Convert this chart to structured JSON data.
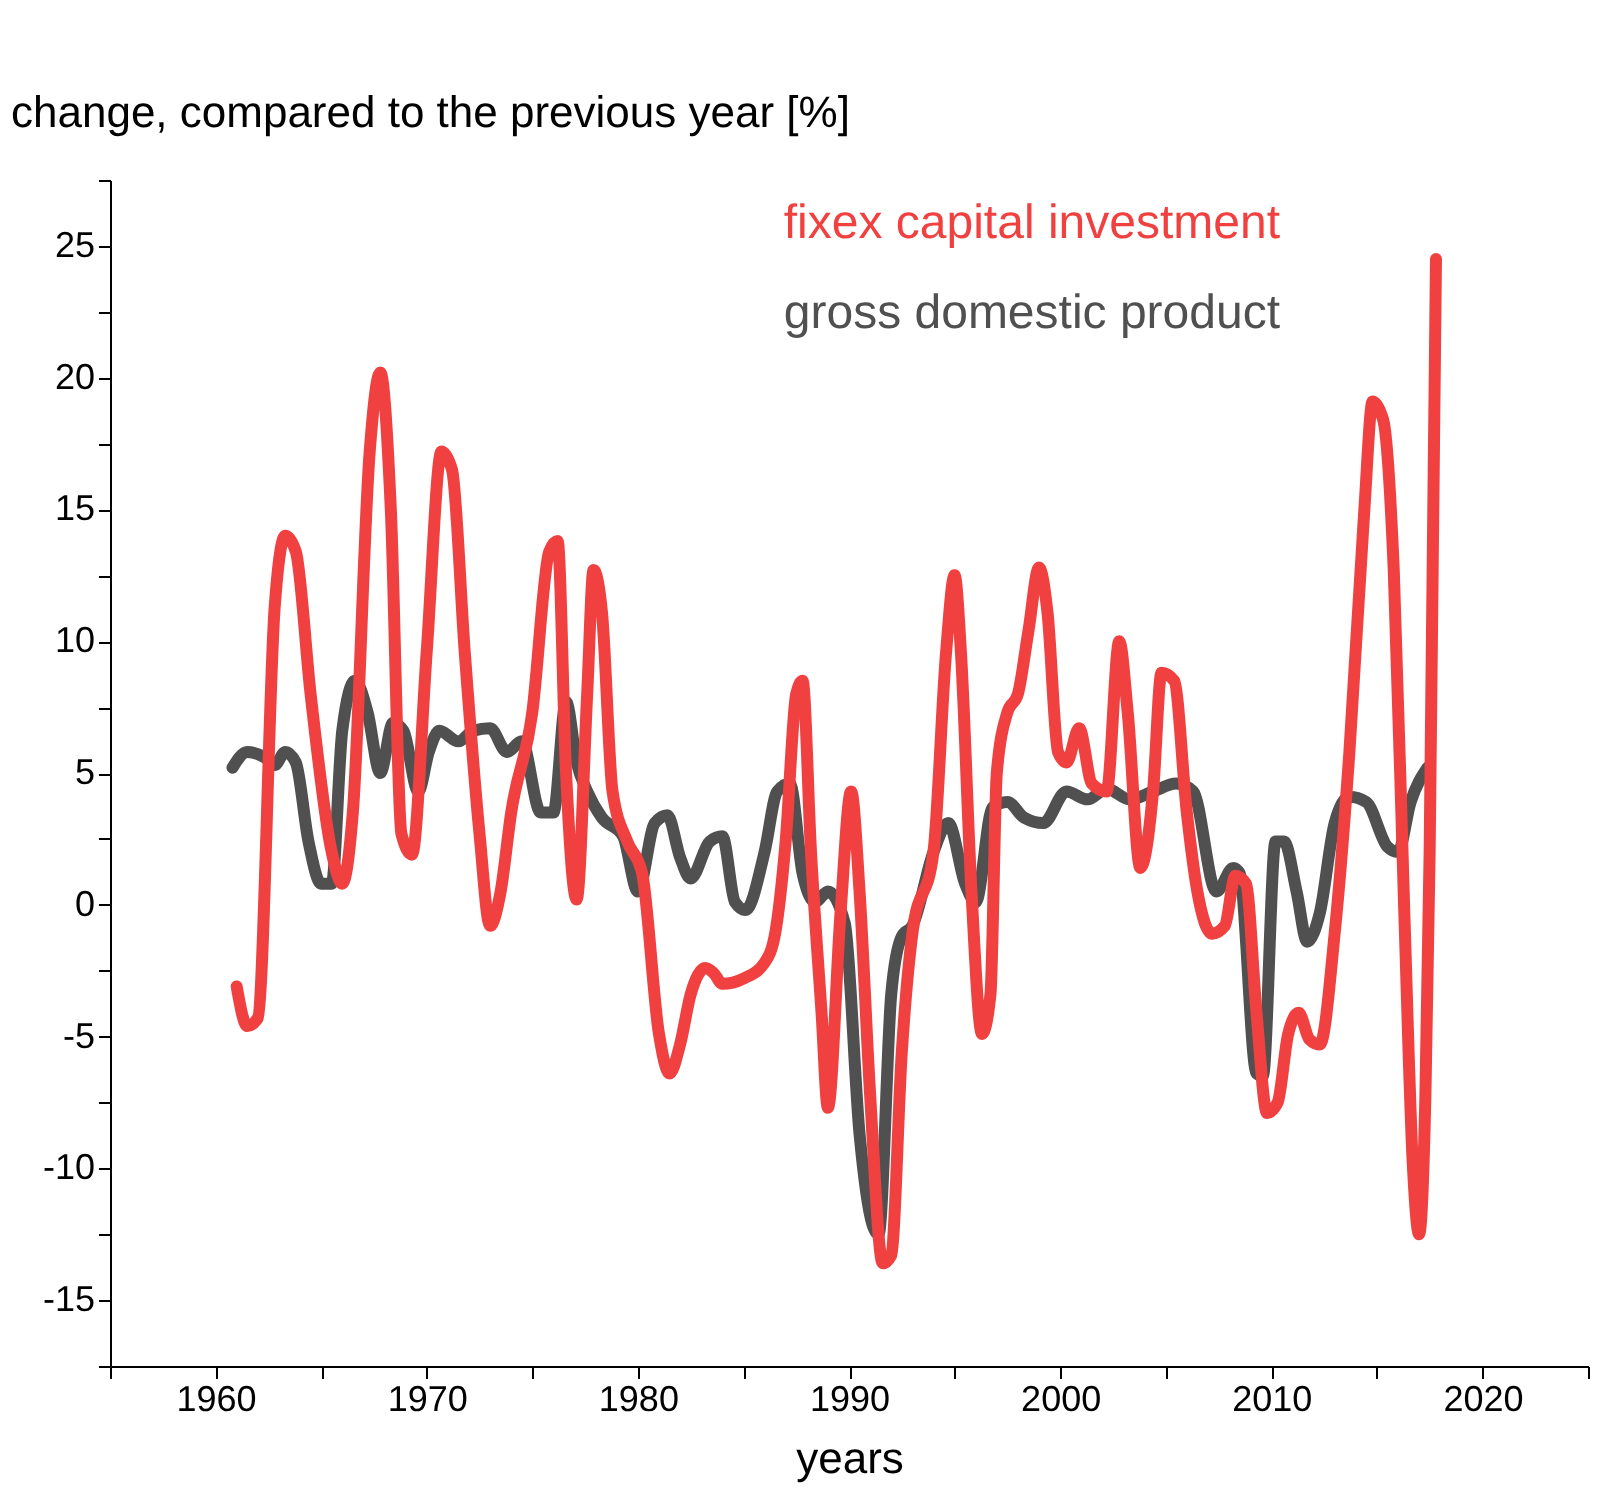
{
  "chart_data": {
    "type": "line",
    "ylabel": "change, compared to the previous year [%]",
    "xlabel": "years",
    "xlim": [
      1955,
      2025
    ],
    "ylim": [
      -17.5,
      27.5
    ],
    "xticks": [
      {
        "value": 1955,
        "label": null
      },
      1960,
      {
        "value": 1965,
        "label": null
      },
      1970,
      {
        "value": 1975,
        "label": null
      },
      1980,
      {
        "value": 1985,
        "label": null
      },
      1990,
      {
        "value": 1995,
        "label": null
      },
      2000,
      {
        "value": 2005,
        "label": null
      },
      2010,
      {
        "value": 2015,
        "label": null
      },
      2020,
      {
        "value": 2025,
        "label": null
      }
    ],
    "yticks": [
      {
        "value": -17.5,
        "label": null
      },
      -15,
      {
        "value": -12.5,
        "label": null
      },
      -10,
      {
        "value": -7.5,
        "label": null
      },
      -5,
      {
        "value": -2.5,
        "label": null
      },
      0,
      {
        "value": 2.5,
        "label": null
      },
      5,
      {
        "value": 7.5,
        "label": null
      },
      10,
      {
        "value": 12.5,
        "label": null
      },
      15,
      {
        "value": 17.5,
        "label": null
      },
      20,
      {
        "value": 22.5,
        "label": null
      },
      25,
      {
        "value": 27.5,
        "label": null
      }
    ],
    "grid": false,
    "legend": "top right",
    "marker": "none",
    "line_style": "solid",
    "series": [
      {
        "name": "gross domestic product",
        "color": "#505050",
        "x": [
          1960.8,
          1961.5,
          1962.3,
          1962.8,
          1963.3,
          1963.8,
          1964.4,
          1965,
          1965.5,
          1966,
          1966.6,
          1967.2,
          1967.8,
          1968.4,
          1968.9,
          1969.6,
          1970.1,
          1970.6,
          1971.5,
          1972.2,
          1973,
          1973.8,
          1974.5,
          1975.4,
          1976,
          1976.6,
          1977.1,
          1977.6,
          1978.3,
          1979.3,
          1980,
          1980.8,
          1981.4,
          1982,
          1982.5,
          1983.4,
          1984,
          1984.6,
          1985.1,
          1986,
          1986.6,
          1987.2,
          1987.8,
          1988.4,
          1989,
          1989.8,
          1990.5,
          1991.1,
          1991.4,
          1992,
          1992.5,
          1993,
          1994,
          1994.7,
          1995.5,
          1996,
          1996.8,
          1997.5,
          1998.3,
          1999.2,
          2000.3,
          2001.3,
          2002.2,
          2003.3,
          2004.4,
          2005.5,
          2006.3,
          2007.4,
          2008.2,
          2008.5,
          2009.3,
          2009.6,
          2010.2,
          2010.6,
          2011.2,
          2011.7,
          2012.3,
          2013,
          2013.7,
          2014.5,
          2015.5,
          2016,
          2016.6,
          2017.4
        ],
        "values": [
          5.2,
          5.8,
          5.6,
          5.3,
          5.8,
          5.4,
          2.4,
          0.8,
          0.8,
          6.6,
          8.5,
          7.3,
          5,
          6.9,
          6.6,
          4.3,
          5.8,
          6.6,
          6.2,
          6.6,
          6.7,
          5.8,
          6.2,
          3.5,
          3.5,
          7.7,
          5.4,
          4.3,
          3.3,
          2.6,
          0.5,
          3.1,
          3.4,
          1.8,
          1,
          2.4,
          2.6,
          0.1,
          -0.2,
          2,
          4.3,
          4.6,
          1.2,
          0.1,
          0.5,
          -0.7,
          -8.7,
          -12.1,
          -12.5,
          -3.4,
          -1.2,
          -0.8,
          2,
          3.1,
          0.8,
          0.1,
          3.7,
          3.9,
          3.3,
          3.1,
          4.3,
          4,
          4.4,
          4,
          4.3,
          4.6,
          4.3,
          0.5,
          1.4,
          1.2,
          -6.4,
          -6.5,
          2.4,
          2.4,
          0.5,
          -1.4,
          -0.3,
          3.1,
          4.1,
          3.9,
          2.2,
          2,
          3.9,
          5.2
        ]
      },
      {
        "name": "fixex capital investment",
        "color": "#f04040",
        "x": [
          1961,
          1961.5,
          1962,
          1962.8,
          1963.3,
          1963.8,
          1964.5,
          1965.5,
          1966,
          1966.5,
          1967.3,
          1967.8,
          1968.3,
          1968.8,
          1969.3,
          1970,
          1970.7,
          1971.2,
          1971.8,
          1972.5,
          1973,
          1973.5,
          1974,
          1975,
          1975.8,
          1976.2,
          1976.6,
          1977.1,
          1977.6,
          1977.9,
          1978.3,
          1978.8,
          1979.5,
          1980.2,
          1981,
          1981.5,
          1982,
          1982.5,
          1983.2,
          1983.6,
          1984,
          1985,
          1986,
          1986.5,
          1987,
          1987.5,
          1987.8,
          1988.2,
          1988.7,
          1989,
          1989.6,
          1990.1,
          1990.5,
          1991,
          1991.6,
          1992,
          1992.5,
          1993,
          1994,
          1994.6,
          1995,
          1995.3,
          1995.8,
          1996.3,
          1996.7,
          1997,
          1997.5,
          1998,
          1998.5,
          1999,
          1999.4,
          1999.9,
          2000.3,
          2000.9,
          2001.5,
          2002.2,
          2002.8,
          2003.2,
          2003.8,
          2004.4,
          2004.8,
          2005.4,
          2006,
          2006.5,
          2007.2,
          2007.8,
          2008.3,
          2008.8,
          2009.3,
          2009.8,
          2010.3,
          2010.8,
          2011.3,
          2011.8,
          2012.3,
          2013,
          2013.7,
          2014.4,
          2014.8,
          2015.3,
          2015.8,
          2016.3,
          2016.7,
          2017,
          2017.3,
          2017.5,
          2017.8
        ],
        "values": [
          -3.1,
          -4.6,
          -4.3,
          11.3,
          14,
          13.4,
          8,
          2,
          0.8,
          3.5,
          17.2,
          20.2,
          15,
          2.7,
          1.9,
          9.6,
          17.2,
          16.5,
          9.6,
          2.7,
          -0.8,
          0.5,
          3.5,
          7.3,
          13.4,
          13.8,
          5,
          0.2,
          8,
          12.7,
          11.1,
          4.3,
          2.4,
          1.2,
          -4.9,
          -6.4,
          -5.3,
          -3.4,
          -2.4,
          -2.6,
          -3,
          -2.8,
          -2.2,
          -1.1,
          2.4,
          8,
          8.5,
          2,
          -4.1,
          -7.7,
          -0.3,
          4.3,
          0.5,
          -7.2,
          -13.6,
          -13.3,
          -5.6,
          -1.1,
          2,
          9.6,
          12.5,
          9.6,
          0.5,
          -4.9,
          -3.4,
          5,
          7.3,
          8,
          10.4,
          12.8,
          11.1,
          5.8,
          5.4,
          6.7,
          4.6,
          4.3,
          10,
          7.3,
          1.4,
          4.3,
          8.8,
          8.5,
          3.5,
          0.5,
          -1.1,
          -0.8,
          1.1,
          0.8,
          -4.1,
          -7.9,
          -7.5,
          -4.9,
          -4.1,
          -5.1,
          -5.3,
          -1.1,
          5.8,
          14.9,
          19.1,
          18.4,
          12.7,
          -0.3,
          -9.8,
          -12.5,
          -7.2,
          2,
          24.5
        ]
      }
    ]
  }
}
